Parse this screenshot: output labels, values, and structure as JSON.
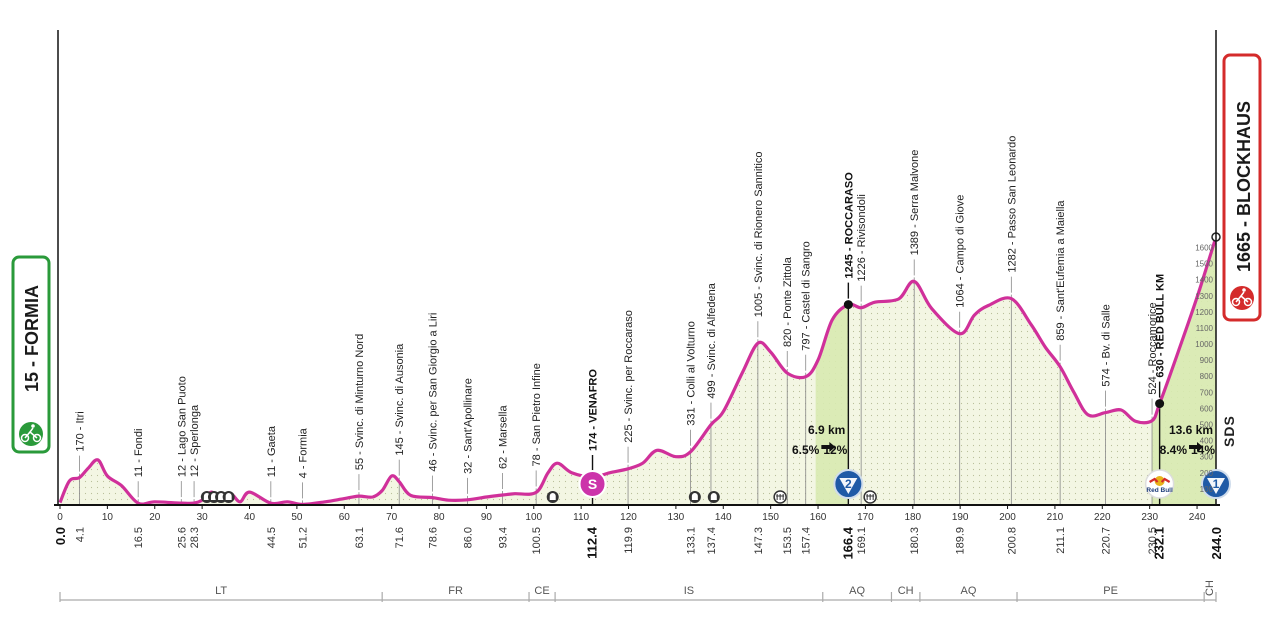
{
  "chart_data": {
    "type": "area",
    "x_unit": "km",
    "y_unit": "m",
    "xlim": [
      0,
      244
    ],
    "ylim": [
      0,
      1700
    ],
    "profile": [
      [
        0,
        15
      ],
      [
        2,
        150
      ],
      [
        4.1,
        170
      ],
      [
        6,
        230
      ],
      [
        8,
        280
      ],
      [
        10,
        180
      ],
      [
        13,
        120
      ],
      [
        16.5,
        11
      ],
      [
        20,
        20
      ],
      [
        25.6,
        12
      ],
      [
        28.3,
        12
      ],
      [
        30,
        30
      ],
      [
        32,
        80
      ],
      [
        34,
        30
      ],
      [
        36,
        70
      ],
      [
        38,
        20
      ],
      [
        40,
        80
      ],
      [
        44.5,
        11
      ],
      [
        48,
        20
      ],
      [
        51.2,
        4
      ],
      [
        56,
        20
      ],
      [
        60,
        40
      ],
      [
        63.1,
        55
      ],
      [
        66,
        50
      ],
      [
        68,
        90
      ],
      [
        70,
        180
      ],
      [
        71.6,
        145
      ],
      [
        74,
        60
      ],
      [
        78.6,
        46
      ],
      [
        82,
        30
      ],
      [
        86,
        32
      ],
      [
        90,
        50
      ],
      [
        93.4,
        62
      ],
      [
        96,
        70
      ],
      [
        100.5,
        78
      ],
      [
        103,
        200
      ],
      [
        105,
        260
      ],
      [
        108,
        200
      ],
      [
        112.4,
        174
      ],
      [
        116,
        200
      ],
      [
        119.9,
        225
      ],
      [
        123,
        260
      ],
      [
        126,
        340
      ],
      [
        130,
        300
      ],
      [
        133.1,
        331
      ],
      [
        137.4,
        499
      ],
      [
        140,
        580
      ],
      [
        144,
        820
      ],
      [
        147.3,
        1005
      ],
      [
        150,
        950
      ],
      [
        153.5,
        820
      ],
      [
        157.4,
        797
      ],
      [
        160,
        900
      ],
      [
        163,
        1150
      ],
      [
        166.4,
        1245
      ],
      [
        169.1,
        1226
      ],
      [
        172,
        1260
      ],
      [
        177,
        1280
      ],
      [
        180.3,
        1389
      ],
      [
        184,
        1220
      ],
      [
        189.9,
        1064
      ],
      [
        193,
        1180
      ],
      [
        196,
        1240
      ],
      [
        200.8,
        1282
      ],
      [
        205,
        1120
      ],
      [
        208,
        980
      ],
      [
        211.1,
        859
      ],
      [
        214,
        700
      ],
      [
        217,
        560
      ],
      [
        220.7,
        574
      ],
      [
        224,
        590
      ],
      [
        227,
        520
      ],
      [
        230.5,
        524
      ],
      [
        232.1,
        630
      ],
      [
        236,
        950
      ],
      [
        240,
        1290
      ],
      [
        244,
        1665
      ]
    ],
    "places": [
      {
        "km": 4.1,
        "label": "170 - Itri"
      },
      {
        "km": 16.5,
        "label": "11 - Fondi"
      },
      {
        "km": 25.6,
        "label": "12 - Lago San Puoto"
      },
      {
        "km": 28.3,
        "label": "12 - Sperlonga"
      },
      {
        "km": 44.5,
        "label": "11 - Gaeta"
      },
      {
        "km": 51.2,
        "label": "4 - Formia"
      },
      {
        "km": 63.1,
        "label": "55 - Svinc. di Minturno Nord"
      },
      {
        "km": 71.6,
        "label": "145 - Svinc. di Ausonia"
      },
      {
        "km": 78.6,
        "label": "46 - Svinc. per San Giorgio a Liri"
      },
      {
        "km": 86.0,
        "label": "32 - Sant'Apollinare"
      },
      {
        "km": 93.4,
        "label": "62 - Marsella"
      },
      {
        "km": 100.5,
        "label": "78 - San Pietro Infine"
      },
      {
        "km": 112.4,
        "label": "174 - VENAFRO",
        "bold": true
      },
      {
        "km": 119.9,
        "label": "225 - Svinc. per Roccaraso"
      },
      {
        "km": 133.1,
        "label": "331 - Colli al Volturno"
      },
      {
        "km": 137.4,
        "label": "499 - Svinc. di Alfedena"
      },
      {
        "km": 147.3,
        "label": "1005 - Svinc. di Rionero Sannitico"
      },
      {
        "km": 153.5,
        "label": "820 - Ponte Zittola"
      },
      {
        "km": 157.4,
        "label": "797 - Castel di Sangro"
      },
      {
        "km": 166.4,
        "label": "1245 - ROCCARASO",
        "bold": true
      },
      {
        "km": 169.1,
        "label": "1226 - Rivisondoli"
      },
      {
        "km": 180.3,
        "label": "1389 - Serra Malvone"
      },
      {
        "km": 189.9,
        "label": "1064 - Campo di Giove"
      },
      {
        "km": 200.8,
        "label": "1282 - Passo San Leonardo"
      },
      {
        "km": 211.1,
        "label": "859 - Sant'Eufemia a Maiella"
      },
      {
        "km": 220.7,
        "label": "574 - Bv. di Salle"
      },
      {
        "km": 230.5,
        "label": "524 - Roccamorice"
      },
      {
        "km": 232.1,
        "label": "630 - RED BULL KM",
        "bold": true
      }
    ],
    "km_markers": [
      {
        "km": 0,
        "label": "0.0",
        "bold": true
      },
      {
        "km": 4.1,
        "label": "4.1"
      },
      {
        "km": 16.5,
        "label": "16.5"
      },
      {
        "km": 25.6,
        "label": "25.6"
      },
      {
        "km": 28.3,
        "label": "28.3"
      },
      {
        "km": 44.5,
        "label": "44.5"
      },
      {
        "km": 51.2,
        "label": "51.2"
      },
      {
        "km": 63.1,
        "label": "63.1"
      },
      {
        "km": 71.6,
        "label": "71.6"
      },
      {
        "km": 78.6,
        "label": "78.6"
      },
      {
        "km": 86.0,
        "label": "86.0"
      },
      {
        "km": 93.4,
        "label": "93.4"
      },
      {
        "km": 100.5,
        "label": "100.5"
      },
      {
        "km": 112.4,
        "label": "112.4",
        "bold": true
      },
      {
        "km": 119.9,
        "label": "119.9"
      },
      {
        "km": 133.1,
        "label": "133.1"
      },
      {
        "km": 137.4,
        "label": "137.4"
      },
      {
        "km": 147.3,
        "label": "147.3"
      },
      {
        "km": 153.5,
        "label": "153.5"
      },
      {
        "km": 157.4,
        "label": "157.4"
      },
      {
        "km": 166.4,
        "label": "166.4",
        "bold": true
      },
      {
        "km": 169.1,
        "label": "169.1"
      },
      {
        "km": 180.3,
        "label": "180.3"
      },
      {
        "km": 189.9,
        "label": "189.9"
      },
      {
        "km": 200.8,
        "label": "200.8"
      },
      {
        "km": 211.1,
        "label": "211.1"
      },
      {
        "km": 220.7,
        "label": "220.7"
      },
      {
        "km": 230.5,
        "label": "230.5"
      },
      {
        "km": 232.1,
        "label": "232.1",
        "bold": true
      },
      {
        "km": 244.0,
        "label": "244.0",
        "bold": true
      }
    ],
    "x_ticks": [
      0,
      10,
      20,
      30,
      40,
      50,
      60,
      70,
      80,
      90,
      100,
      110,
      120,
      130,
      140,
      150,
      160,
      170,
      180,
      190,
      200,
      210,
      220,
      230,
      240
    ],
    "alt_ticks": [
      100,
      200,
      300,
      400,
      500,
      600,
      700,
      800,
      900,
      1000,
      1100,
      1200,
      1300,
      1400,
      1500,
      1600
    ],
    "regions": [
      {
        "from": 0,
        "to": 68,
        "label": "LT"
      },
      {
        "from": 68,
        "to": 99,
        "label": "FR"
      },
      {
        "from": 99,
        "to": 104.5,
        "label": "CE"
      },
      {
        "from": 104.5,
        "to": 161,
        "label": "IS"
      },
      {
        "from": 161,
        "to": 175.5,
        "label": "AQ"
      },
      {
        "from": 175.5,
        "to": 181.5,
        "label": "CH"
      },
      {
        "from": 181.5,
        "to": 202,
        "label": "AQ"
      },
      {
        "from": 202,
        "to": 241.5,
        "label": "PE"
      },
      {
        "from": 241.5,
        "to": 244,
        "label": "CH"
      }
    ],
    "climbs": [
      {
        "from": 159.5,
        "to": 166.4,
        "distance": "6.9 km",
        "avg": "6.5%",
        "max": "12%",
        "category": "2"
      },
      {
        "from": 230.5,
        "to": 244,
        "distance": "13.6 km",
        "avg": "8.4%",
        "max": "14%",
        "category": "1"
      }
    ],
    "sprint": {
      "km": 112.4,
      "label": "S"
    },
    "tunnels_km": [
      31,
      32.5,
      34,
      35.6,
      104,
      134,
      138
    ],
    "bridges_km": [
      152,
      171
    ],
    "red_bull_km": {
      "km": 232.1,
      "label": "Red Bull"
    },
    "start": {
      "alt": "15",
      "name": "FORMIA",
      "label": "15 - FORMIA"
    },
    "finish": {
      "alt": "1665",
      "name": "BLOCKHAUS",
      "label": "1665 - BLOCKHAUS"
    },
    "sds_label": "SDS",
    "colors": {
      "profile_line": "#d0309a",
      "fill_light": "#f3f6e3",
      "fill_climb": "#d8eab0",
      "start_green": "#2a9a3a",
      "finish_red": "#d42b2b",
      "sprint_magenta": "#cc33aa",
      "climb_blue": "#1f5aa6"
    }
  }
}
